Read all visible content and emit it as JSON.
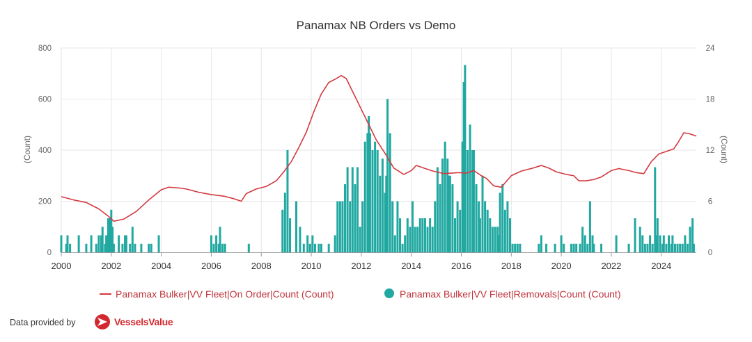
{
  "chart_data": {
    "type": "bar+line",
    "title": "Panamax NB Orders vs Demo",
    "x_ticks": [
      "2000",
      "2002",
      "2004",
      "2006",
      "2008",
      "2010",
      "2012",
      "2014",
      "2016",
      "2018",
      "2020",
      "2022",
      "2024"
    ],
    "x_range": [
      2000,
      2025.4
    ],
    "left_axis": {
      "label": "(Count)",
      "range": [
        0,
        800
      ],
      "ticks": [
        "0",
        "200",
        "400",
        "600",
        "800"
      ]
    },
    "right_axis": {
      "label": "(Count)",
      "range": [
        0,
        24
      ],
      "ticks": [
        "0",
        "6",
        "12",
        "18",
        "24"
      ]
    },
    "grid": true,
    "legend_position": "bottom",
    "series": [
      {
        "name": "Panamax Bulker|VV Fleet|On Order|Count (Count)",
        "type": "line",
        "axis": "left",
        "color": "#d3393f",
        "points": [
          [
            2000.0,
            218
          ],
          [
            2000.5,
            205
          ],
          [
            2001.0,
            195
          ],
          [
            2001.5,
            170
          ],
          [
            2001.9,
            140
          ],
          [
            2002.1,
            122
          ],
          [
            2002.5,
            130
          ],
          [
            2003.0,
            160
          ],
          [
            2003.5,
            205
          ],
          [
            2004.0,
            245
          ],
          [
            2004.3,
            255
          ],
          [
            2004.7,
            252
          ],
          [
            2005.0,
            248
          ],
          [
            2005.5,
            235
          ],
          [
            2006.0,
            226
          ],
          [
            2006.5,
            220
          ],
          [
            2006.9,
            210
          ],
          [
            2007.2,
            200
          ],
          [
            2007.4,
            230
          ],
          [
            2007.8,
            248
          ],
          [
            2008.2,
            258
          ],
          [
            2008.6,
            280
          ],
          [
            2008.9,
            315
          ],
          [
            2009.2,
            355
          ],
          [
            2009.5,
            410
          ],
          [
            2009.8,
            470
          ],
          [
            2010.1,
            550
          ],
          [
            2010.4,
            620
          ],
          [
            2010.7,
            665
          ],
          [
            2011.0,
            680
          ],
          [
            2011.2,
            692
          ],
          [
            2011.4,
            680
          ],
          [
            2011.7,
            620
          ],
          [
            2012.0,
            560
          ],
          [
            2012.3,
            500
          ],
          [
            2012.6,
            440
          ],
          [
            2013.0,
            380
          ],
          [
            2013.3,
            330
          ],
          [
            2013.7,
            305
          ],
          [
            2014.0,
            320
          ],
          [
            2014.2,
            340
          ],
          [
            2014.5,
            330
          ],
          [
            2014.8,
            320
          ],
          [
            2015.0,
            315
          ],
          [
            2015.3,
            308
          ],
          [
            2015.6,
            310
          ],
          [
            2015.9,
            312
          ],
          [
            2016.2,
            310
          ],
          [
            2016.5,
            320
          ],
          [
            2016.8,
            300
          ],
          [
            2017.0,
            290
          ],
          [
            2017.3,
            260
          ],
          [
            2017.6,
            255
          ],
          [
            2018.0,
            300
          ],
          [
            2018.4,
            318
          ],
          [
            2018.8,
            328
          ],
          [
            2019.2,
            340
          ],
          [
            2019.5,
            330
          ],
          [
            2019.8,
            315
          ],
          [
            2020.2,
            305
          ],
          [
            2020.5,
            300
          ],
          [
            2020.7,
            280
          ],
          [
            2021.0,
            280
          ],
          [
            2021.3,
            285
          ],
          [
            2021.6,
            295
          ],
          [
            2022.0,
            320
          ],
          [
            2022.3,
            328
          ],
          [
            2022.7,
            320
          ],
          [
            2023.0,
            312
          ],
          [
            2023.3,
            308
          ],
          [
            2023.6,
            355
          ],
          [
            2023.9,
            385
          ],
          [
            2024.2,
            395
          ],
          [
            2024.5,
            405
          ],
          [
            2024.7,
            435
          ],
          [
            2024.9,
            468
          ],
          [
            2025.1,
            465
          ],
          [
            2025.4,
            455
          ]
        ]
      },
      {
        "name": "Panamax Bulker|VV Fleet|Removals|Count (Count)",
        "type": "bar",
        "axis": "right",
        "color": "#20a8a1",
        "points": [
          [
            2000.0,
            2
          ],
          [
            2000.2,
            1
          ],
          [
            2000.25,
            2
          ],
          [
            2000.35,
            1
          ],
          [
            2000.7,
            2
          ],
          [
            2001.0,
            1
          ],
          [
            2001.2,
            2
          ],
          [
            2001.4,
            1
          ],
          [
            2001.5,
            2
          ],
          [
            2001.6,
            2
          ],
          [
            2001.65,
            3
          ],
          [
            2001.75,
            1
          ],
          [
            2001.8,
            2
          ],
          [
            2001.88,
            4
          ],
          [
            2001.95,
            4
          ],
          [
            2002.0,
            5
          ],
          [
            2002.05,
            3
          ],
          [
            2002.1,
            1
          ],
          [
            2002.3,
            2
          ],
          [
            2002.45,
            1
          ],
          [
            2002.55,
            2
          ],
          [
            2002.6,
            2
          ],
          [
            2002.75,
            1
          ],
          [
            2002.85,
            3
          ],
          [
            2002.95,
            1
          ],
          [
            2003.2,
            1
          ],
          [
            2003.5,
            1
          ],
          [
            2003.6,
            1
          ],
          [
            2003.9,
            2
          ],
          [
            2006.0,
            2
          ],
          [
            2006.1,
            1
          ],
          [
            2006.2,
            2
          ],
          [
            2006.3,
            1
          ],
          [
            2006.35,
            3
          ],
          [
            2006.45,
            1
          ],
          [
            2006.55,
            1
          ],
          [
            2007.5,
            1
          ],
          [
            2008.85,
            5
          ],
          [
            2008.95,
            7
          ],
          [
            2009.05,
            12
          ],
          [
            2009.15,
            4
          ],
          [
            2009.4,
            6
          ],
          [
            2009.55,
            3
          ],
          [
            2009.7,
            1
          ],
          [
            2009.85,
            2
          ],
          [
            2009.95,
            1
          ],
          [
            2010.05,
            2
          ],
          [
            2010.15,
            1
          ],
          [
            2010.3,
            1
          ],
          [
            2010.4,
            1
          ],
          [
            2010.7,
            1
          ],
          [
            2010.95,
            2
          ],
          [
            2011.05,
            6
          ],
          [
            2011.15,
            6
          ],
          [
            2011.25,
            6
          ],
          [
            2011.35,
            8
          ],
          [
            2011.45,
            10
          ],
          [
            2011.55,
            6
          ],
          [
            2011.65,
            10
          ],
          [
            2011.75,
            8
          ],
          [
            2011.85,
            10
          ],
          [
            2011.95,
            3
          ],
          [
            2012.05,
            6
          ],
          [
            2012.15,
            13
          ],
          [
            2012.25,
            14
          ],
          [
            2012.3,
            16
          ],
          [
            2012.35,
            14
          ],
          [
            2012.45,
            12
          ],
          [
            2012.55,
            13
          ],
          [
            2012.65,
            12
          ],
          [
            2012.75,
            9
          ],
          [
            2012.85,
            11
          ],
          [
            2012.95,
            7
          ],
          [
            2013.0,
            9
          ],
          [
            2013.05,
            18
          ],
          [
            2013.15,
            14
          ],
          [
            2013.25,
            6
          ],
          [
            2013.35,
            2
          ],
          [
            2013.45,
            6
          ],
          [
            2013.55,
            4
          ],
          [
            2013.65,
            1
          ],
          [
            2013.75,
            2
          ],
          [
            2013.85,
            4
          ],
          [
            2013.95,
            3
          ],
          [
            2014.05,
            6
          ],
          [
            2014.15,
            3
          ],
          [
            2014.25,
            3
          ],
          [
            2014.35,
            4
          ],
          [
            2014.45,
            4
          ],
          [
            2014.55,
            4
          ],
          [
            2014.65,
            3
          ],
          [
            2014.75,
            4
          ],
          [
            2014.85,
            3
          ],
          [
            2014.95,
            6
          ],
          [
            2015.05,
            10
          ],
          [
            2015.15,
            8
          ],
          [
            2015.25,
            11
          ],
          [
            2015.35,
            13
          ],
          [
            2015.45,
            11
          ],
          [
            2015.5,
            9
          ],
          [
            2015.55,
            9
          ],
          [
            2015.65,
            8
          ],
          [
            2015.75,
            4
          ],
          [
            2015.85,
            6
          ],
          [
            2015.95,
            5
          ],
          [
            2016.05,
            13
          ],
          [
            2016.1,
            20
          ],
          [
            2016.15,
            22
          ],
          [
            2016.25,
            12
          ],
          [
            2016.35,
            15
          ],
          [
            2016.45,
            12
          ],
          [
            2016.5,
            12
          ],
          [
            2016.6,
            8
          ],
          [
            2016.7,
            6
          ],
          [
            2016.75,
            4
          ],
          [
            2016.85,
            9
          ],
          [
            2016.95,
            6
          ],
          [
            2017.05,
            5
          ],
          [
            2017.15,
            4
          ],
          [
            2017.25,
            3
          ],
          [
            2017.35,
            3
          ],
          [
            2017.45,
            3
          ],
          [
            2017.5,
            2
          ],
          [
            2017.55,
            7
          ],
          [
            2017.65,
            8
          ],
          [
            2017.75,
            5
          ],
          [
            2017.85,
            6
          ],
          [
            2017.95,
            4
          ],
          [
            2018.05,
            1
          ],
          [
            2018.15,
            1
          ],
          [
            2018.25,
            1
          ],
          [
            2018.35,
            1
          ],
          [
            2019.1,
            1
          ],
          [
            2019.2,
            2
          ],
          [
            2019.4,
            1
          ],
          [
            2019.75,
            1
          ],
          [
            2020.0,
            2
          ],
          [
            2020.1,
            1
          ],
          [
            2020.4,
            1
          ],
          [
            2020.5,
            1
          ],
          [
            2020.6,
            1
          ],
          [
            2020.75,
            1
          ],
          [
            2020.85,
            3
          ],
          [
            2020.95,
            2
          ],
          [
            2021.05,
            1
          ],
          [
            2021.15,
            6
          ],
          [
            2021.25,
            2
          ],
          [
            2021.3,
            1
          ],
          [
            2021.6,
            1
          ],
          [
            2022.2,
            2
          ],
          [
            2022.7,
            1
          ],
          [
            2022.95,
            4
          ],
          [
            2023.15,
            3
          ],
          [
            2023.25,
            2
          ],
          [
            2023.35,
            1
          ],
          [
            2023.45,
            1
          ],
          [
            2023.55,
            2
          ],
          [
            2023.65,
            1
          ],
          [
            2023.75,
            10
          ],
          [
            2023.8,
            2
          ],
          [
            2023.85,
            4
          ],
          [
            2023.95,
            2
          ],
          [
            2024.05,
            1
          ],
          [
            2024.1,
            2
          ],
          [
            2024.2,
            1
          ],
          [
            2024.3,
            2
          ],
          [
            2024.4,
            1
          ],
          [
            2024.45,
            2
          ],
          [
            2024.55,
            1
          ],
          [
            2024.65,
            1
          ],
          [
            2024.75,
            1
          ],
          [
            2024.85,
            1
          ],
          [
            2024.95,
            2
          ],
          [
            2025.05,
            1
          ],
          [
            2025.15,
            3
          ],
          [
            2025.25,
            4
          ],
          [
            2025.3,
            1
          ]
        ]
      }
    ]
  },
  "footer": {
    "provided_by": "Data provided by",
    "brand": "VesselsValue",
    "brand_color": "#d3282f",
    "brand_icon": "vesselsvalue-logo-icon"
  }
}
